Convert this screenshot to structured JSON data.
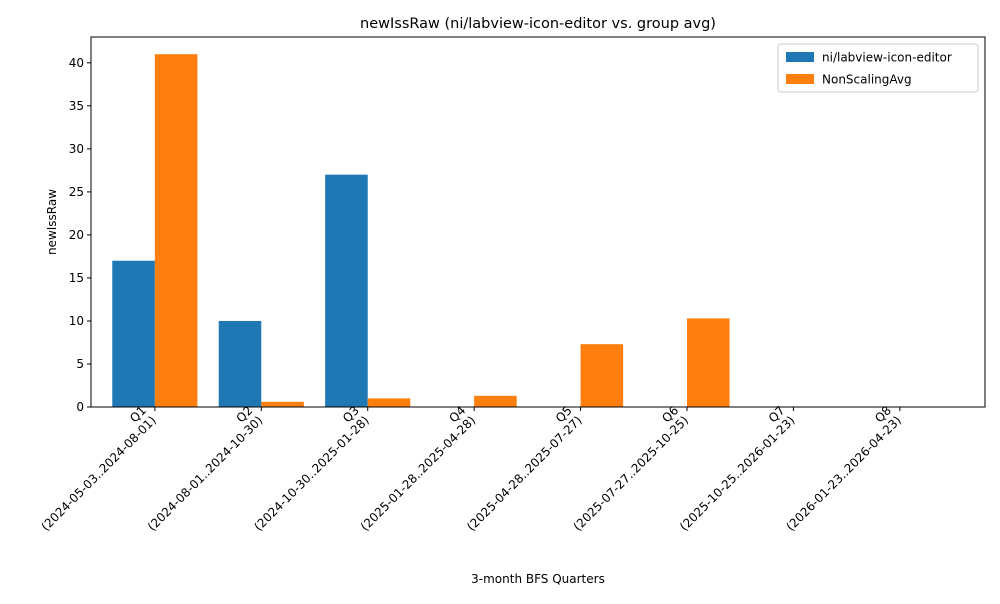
{
  "chart_data": {
    "type": "bar",
    "title": "newIssRaw (ni/labview-icon-editor vs. group avg)",
    "xlabel": "3-month BFS Quarters",
    "ylabel": "newIssRaw",
    "ylim": [
      0,
      43
    ],
    "yticks": [
      0,
      5,
      10,
      15,
      20,
      25,
      30,
      35,
      40
    ],
    "grid": false,
    "legend_position": "top-right",
    "categories": [
      "Q1\n(2024-05-03..2024-08-01)",
      "Q2\n(2024-08-01..2024-10-30)",
      "Q3\n(2024-10-30..2025-01-28)",
      "Q4\n(2025-01-28..2025-04-28)",
      "Q5\n(2025-04-28..2025-07-27)",
      "Q6\n(2025-07-27..2025-10-25)",
      "Q7\n(2025-10-25..2026-01-23)",
      "Q8\n(2026-01-23..2026-04-23)"
    ],
    "series": [
      {
        "name": "ni/labview-icon-editor",
        "color": "#1f77b4",
        "values": [
          17,
          10,
          27,
          0,
          0,
          0,
          0,
          0
        ]
      },
      {
        "name": "NonScalingAvg",
        "color": "#ff7f0e",
        "values": [
          41,
          0.6,
          1.0,
          1.3,
          7.3,
          10.3,
          0,
          0
        ]
      }
    ]
  }
}
